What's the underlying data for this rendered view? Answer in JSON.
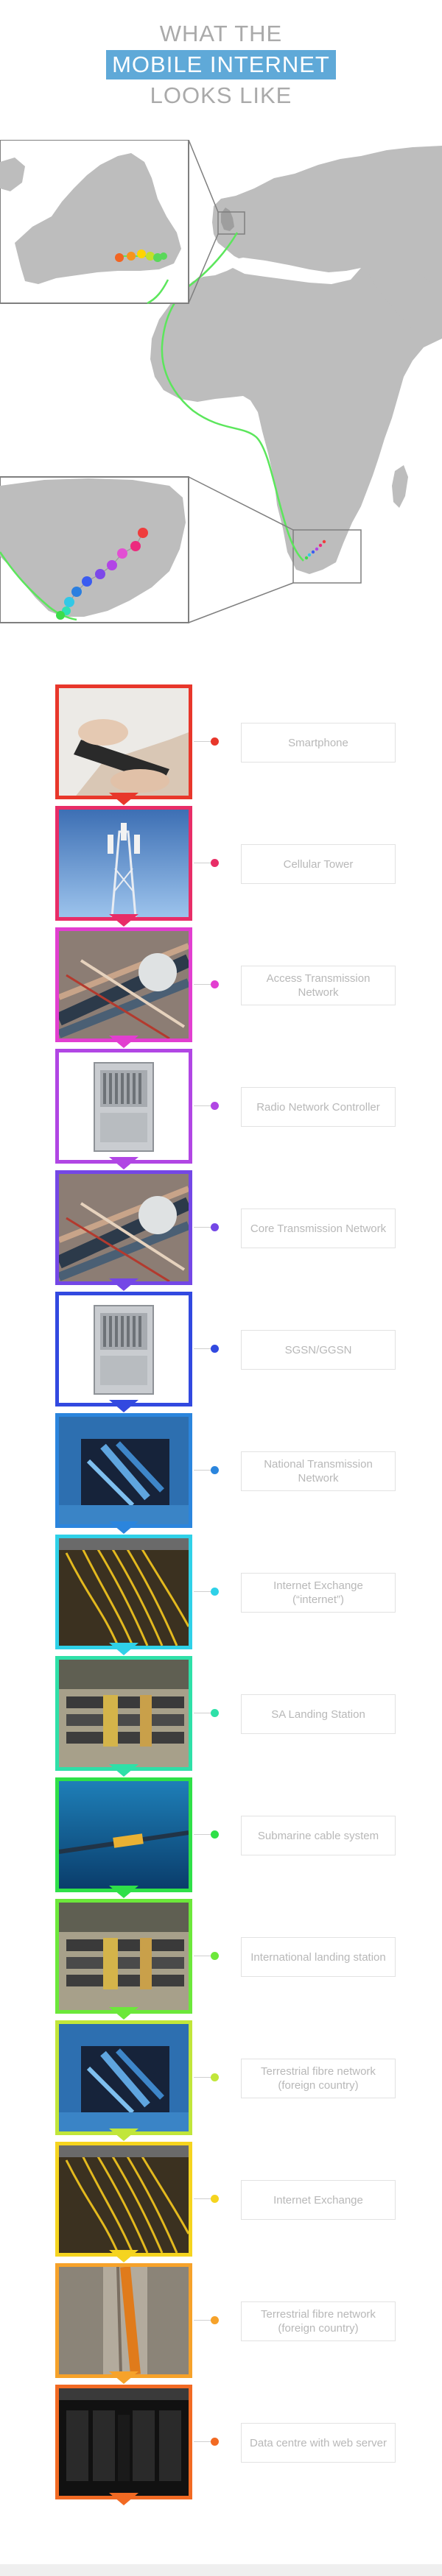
{
  "title": {
    "line1": "WHAT THE",
    "line2": "MOBILE INTERNET",
    "line3": "LOOKS LIKE"
  },
  "colors": {
    "title_highlight": "#5fa9d8",
    "map_land": "#b9b9b9",
    "cable_route": "#5ce65c",
    "inset_border": "#8a8a8a"
  },
  "route_dots": {
    "uk": [
      "#f26522",
      "#f7941d",
      "#ffd400",
      "#c3e02a",
      "#5ad85a",
      "#5ad85a"
    ],
    "south_africa": [
      "#ef3d3d",
      "#ec2a7e",
      "#e24fd3",
      "#b245e6",
      "#7d49e9",
      "#3b5cf0",
      "#2b7fe0",
      "#32c8e6",
      "#2fe0b5",
      "#3ddc4a"
    ]
  },
  "chain": [
    {
      "label": "Smartphone",
      "color": "#e8372b",
      "icon": "smartphone-icon"
    },
    {
      "label": "Cellular Tower",
      "color": "#e82d67",
      "icon": "cellular-tower-icon"
    },
    {
      "label": "Access Transmission Network",
      "color": "#e23ed0",
      "icon": "cables-icon"
    },
    {
      "label": "Radio Network Controller",
      "color": "#b146e4",
      "icon": "server-rack-icon"
    },
    {
      "label": "Core Transmission Network",
      "color": "#7447e6",
      "icon": "cables-icon"
    },
    {
      "label": "SGSN/GGSN",
      "color": "#3249e0",
      "icon": "server-rack-icon"
    },
    {
      "label": "National Transmission Network",
      "color": "#2b85dd",
      "icon": "fibre-duct-icon"
    },
    {
      "label": "Internet Exchange (“internet”)",
      "color": "#2fd1e8",
      "icon": "fibre-panel-icon"
    },
    {
      "label": "SA Landing Station",
      "color": "#2ee0a8",
      "icon": "landing-station-icon"
    },
    {
      "label": "Submarine cable system",
      "color": "#2fe048",
      "icon": "submarine-cable-icon"
    },
    {
      "label": "International landing station",
      "color": "#6ce83a",
      "icon": "landing-station-icon"
    },
    {
      "label": "Terrestrial fibre network (foreign country)",
      "color": "#c1e63a",
      "icon": "fibre-duct-icon"
    },
    {
      "label": "Internet Exchange",
      "color": "#f5d41f",
      "icon": "fibre-panel-icon"
    },
    {
      "label": "Terrestrial fibre network (foreign country)",
      "color": "#f6a22a",
      "icon": "trench-icon"
    },
    {
      "label": "Data centre with web server",
      "color": "#f26a23",
      "icon": "data-centre-icon"
    }
  ]
}
